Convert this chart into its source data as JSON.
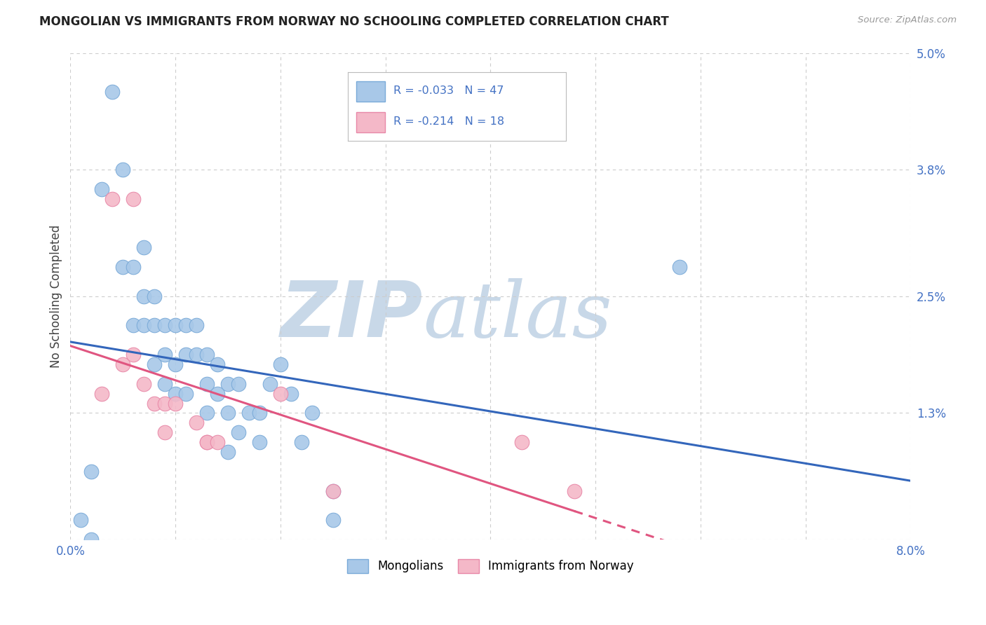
{
  "title": "MONGOLIAN VS IMMIGRANTS FROM NORWAY NO SCHOOLING COMPLETED CORRELATION CHART",
  "source": "Source: ZipAtlas.com",
  "ylabel": "No Schooling Completed",
  "xlim": [
    0.0,
    0.08
  ],
  "ylim": [
    0.0,
    0.05
  ],
  "xticks": [
    0.0,
    0.01,
    0.02,
    0.03,
    0.04,
    0.05,
    0.06,
    0.07,
    0.08
  ],
  "yticks": [
    0.0,
    0.013,
    0.025,
    0.038,
    0.05
  ],
  "mongolian_R": "-0.033",
  "mongolian_N": "47",
  "norway_R": "-0.214",
  "norway_N": "18",
  "legend_mongolians": "Mongolians",
  "legend_norway": "Immigrants from Norway",
  "mongolian_color": "#a8c8e8",
  "norway_color": "#f4b8c8",
  "mongolian_edge": "#7aaad8",
  "norway_edge": "#e888a8",
  "trendline_mongolian_color": "#3366bb",
  "trendline_norway_color": "#e05580",
  "background_color": "#ffffff",
  "grid_color": "#cccccc",
  "watermark_zip": "ZIP",
  "watermark_atlas": "atlas",
  "watermark_color_zip": "#c8d8e8",
  "watermark_color_atlas": "#c8d8e8",
  "mongolian_x": [
    0.001,
    0.002,
    0.003,
    0.004,
    0.005,
    0.005,
    0.006,
    0.006,
    0.007,
    0.007,
    0.007,
    0.008,
    0.008,
    0.008,
    0.009,
    0.009,
    0.009,
    0.01,
    0.01,
    0.01,
    0.011,
    0.011,
    0.011,
    0.012,
    0.012,
    0.013,
    0.013,
    0.013,
    0.014,
    0.014,
    0.015,
    0.015,
    0.015,
    0.016,
    0.016,
    0.017,
    0.018,
    0.018,
    0.019,
    0.02,
    0.021,
    0.022,
    0.023,
    0.025,
    0.025,
    0.058,
    0.002
  ],
  "mongolian_y": [
    0.002,
    0.0,
    0.036,
    0.046,
    0.038,
    0.028,
    0.028,
    0.022,
    0.03,
    0.025,
    0.022,
    0.025,
    0.022,
    0.018,
    0.022,
    0.019,
    0.016,
    0.022,
    0.018,
    0.015,
    0.022,
    0.019,
    0.015,
    0.022,
    0.019,
    0.019,
    0.016,
    0.013,
    0.018,
    0.015,
    0.016,
    0.013,
    0.009,
    0.016,
    0.011,
    0.013,
    0.013,
    0.01,
    0.016,
    0.018,
    0.015,
    0.01,
    0.013,
    0.005,
    0.002,
    0.028,
    0.007
  ],
  "norway_x": [
    0.003,
    0.004,
    0.005,
    0.006,
    0.006,
    0.007,
    0.008,
    0.009,
    0.009,
    0.01,
    0.012,
    0.013,
    0.013,
    0.014,
    0.02,
    0.025,
    0.043,
    0.048
  ],
  "norway_y": [
    0.015,
    0.035,
    0.018,
    0.035,
    0.019,
    0.016,
    0.014,
    0.014,
    0.011,
    0.014,
    0.012,
    0.01,
    0.01,
    0.01,
    0.015,
    0.005,
    0.01,
    0.005
  ]
}
